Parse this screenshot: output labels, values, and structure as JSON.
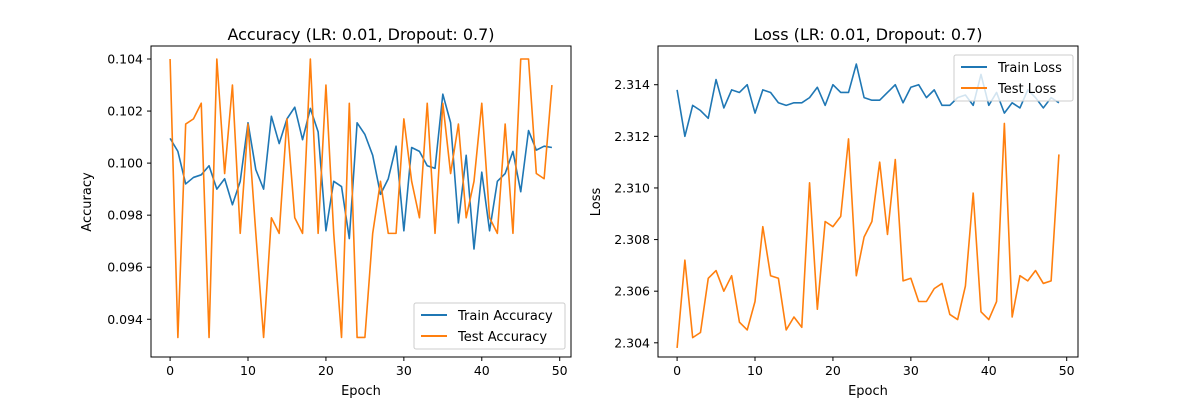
{
  "chart_data": [
    {
      "type": "line",
      "title": "Accuracy (LR: 0.01, Dropout: 0.7)",
      "xlabel": "Epoch",
      "ylabel": "Accuracy",
      "xlim": [
        -2.45,
        51.45
      ],
      "ylim": [
        0.09255,
        0.1045
      ],
      "xticks": [
        0,
        10,
        20,
        30,
        40,
        50
      ],
      "yticks": [
        0.094,
        0.096,
        0.098,
        0.1,
        0.102,
        0.104
      ],
      "ytick_labels": [
        "0.094",
        "0.096",
        "0.098",
        "0.100",
        "0.102",
        "0.104"
      ],
      "grid": false,
      "legend_position": "lower right",
      "series": [
        {
          "name": "Train Accuracy",
          "color": "#1f77b4",
          "x": [
            0,
            1,
            2,
            3,
            4,
            5,
            6,
            7,
            8,
            9,
            10,
            11,
            12,
            13,
            14,
            15,
            16,
            17,
            18,
            19,
            20,
            21,
            22,
            23,
            24,
            25,
            26,
            27,
            28,
            29,
            30,
            31,
            32,
            33,
            34,
            35,
            36,
            37,
            38,
            39,
            40,
            41,
            42,
            43,
            44,
            45,
            46,
            47,
            48,
            49
          ],
          "values": [
            0.10095,
            0.10045,
            0.0992,
            0.09945,
            0.09955,
            0.0999,
            0.099,
            0.0994,
            0.0984,
            0.0993,
            0.10155,
            0.09975,
            0.099,
            0.1018,
            0.10075,
            0.1017,
            0.10215,
            0.1009,
            0.1021,
            0.1012,
            0.0974,
            0.0993,
            0.0991,
            0.0971,
            0.10155,
            0.1011,
            0.1003,
            0.0988,
            0.0994,
            0.10065,
            0.0974,
            0.1006,
            0.10045,
            0.0999,
            0.0998,
            0.10265,
            0.10155,
            0.0977,
            0.1003,
            0.0967,
            0.09965,
            0.0974,
            0.0993,
            0.0996,
            0.10045,
            0.0989,
            0.10125,
            0.1005,
            0.10065,
            0.1006
          ]
        },
        {
          "name": "Test Accuracy",
          "color": "#ff7f0e",
          "x": [
            0,
            1,
            2,
            3,
            4,
            5,
            6,
            7,
            8,
            9,
            10,
            11,
            12,
            13,
            14,
            15,
            16,
            17,
            18,
            19,
            20,
            21,
            22,
            23,
            24,
            25,
            26,
            27,
            28,
            29,
            30,
            31,
            32,
            33,
            34,
            35,
            36,
            37,
            38,
            39,
            40,
            41,
            42,
            43,
            44,
            45,
            46,
            47,
            48,
            49
          ],
          "values": [
            0.104,
            0.0933,
            0.1015,
            0.1017,
            0.1023,
            0.0933,
            0.104,
            0.0996,
            0.103,
            0.0973,
            0.1015,
            0.0973,
            0.0933,
            0.0979,
            0.0973,
            0.1017,
            0.0979,
            0.0973,
            0.104,
            0.0973,
            0.103,
            0.0973,
            0.0933,
            0.1023,
            0.0933,
            0.0933,
            0.0973,
            0.0993,
            0.0973,
            0.0973,
            0.1017,
            0.0993,
            0.0979,
            0.1023,
            0.0973,
            0.1023,
            0.0996,
            0.1015,
            0.0979,
            0.0993,
            0.1023,
            0.0979,
            0.0973,
            0.1015,
            0.0973,
            0.104,
            0.104,
            0.0996,
            0.0994,
            0.103
          ]
        }
      ]
    },
    {
      "type": "line",
      "title": "Loss (LR: 0.01, Dropout: 0.7)",
      "xlabel": "Epoch",
      "ylabel": "Loss",
      "xlim": [
        -2.45,
        51.45
      ],
      "ylim": [
        2.30345,
        2.3155
      ],
      "xticks": [
        0,
        10,
        20,
        30,
        40,
        50
      ],
      "yticks": [
        2.304,
        2.306,
        2.308,
        2.31,
        2.312,
        2.314
      ],
      "ytick_labels": [
        "2.304",
        "2.306",
        "2.308",
        "2.310",
        "2.312",
        "2.314"
      ],
      "grid": false,
      "legend_position": "upper right",
      "series": [
        {
          "name": "Train Loss",
          "color": "#1f77b4",
          "x": [
            0,
            1,
            2,
            3,
            4,
            5,
            6,
            7,
            8,
            9,
            10,
            11,
            12,
            13,
            14,
            15,
            16,
            17,
            18,
            19,
            20,
            21,
            22,
            23,
            24,
            25,
            26,
            27,
            28,
            29,
            30,
            31,
            32,
            33,
            34,
            35,
            36,
            37,
            38,
            39,
            40,
            41,
            42,
            43,
            44,
            45,
            46,
            47,
            48,
            49
          ],
          "values": [
            2.3138,
            2.312,
            2.3132,
            2.313,
            2.3127,
            2.3142,
            2.3131,
            2.3138,
            2.3137,
            2.314,
            2.3129,
            2.3138,
            2.3137,
            2.3133,
            2.3132,
            2.3133,
            2.3133,
            2.3135,
            2.3139,
            2.3132,
            2.314,
            2.3137,
            2.3137,
            2.3148,
            2.3135,
            2.3134,
            2.3134,
            2.3137,
            2.314,
            2.3133,
            2.3139,
            2.314,
            2.3135,
            2.3138,
            2.3132,
            2.3132,
            2.3135,
            2.3136,
            2.3132,
            2.3144,
            2.3132,
            2.3137,
            2.3129,
            2.3133,
            2.3131,
            2.3138,
            2.3135,
            2.3131,
            2.3135,
            2.3133
          ]
        },
        {
          "name": "Test Loss",
          "color": "#ff7f0e",
          "x": [
            0,
            1,
            2,
            3,
            4,
            5,
            6,
            7,
            8,
            9,
            10,
            11,
            12,
            13,
            14,
            15,
            16,
            17,
            18,
            19,
            20,
            21,
            22,
            23,
            24,
            25,
            26,
            27,
            28,
            29,
            30,
            31,
            32,
            33,
            34,
            35,
            36,
            37,
            38,
            39,
            40,
            41,
            42,
            43,
            44,
            45,
            46,
            47,
            48,
            49
          ],
          "values": [
            2.3038,
            2.3072,
            2.3042,
            2.3044,
            2.3065,
            2.3068,
            2.306,
            2.3066,
            2.3048,
            2.3045,
            2.3056,
            2.3085,
            2.3066,
            2.3065,
            2.3045,
            2.305,
            2.3046,
            2.3102,
            2.3053,
            2.3087,
            2.3085,
            2.3089,
            2.3119,
            2.3066,
            2.3081,
            2.3087,
            2.311,
            2.3082,
            2.3111,
            2.3064,
            2.3065,
            2.3056,
            2.3056,
            2.3061,
            2.3063,
            2.3051,
            2.3049,
            2.3062,
            2.3098,
            2.3052,
            2.3049,
            2.3056,
            2.3125,
            2.305,
            2.3066,
            2.3064,
            2.3068,
            2.3063,
            2.3064,
            2.3113
          ]
        }
      ]
    }
  ]
}
